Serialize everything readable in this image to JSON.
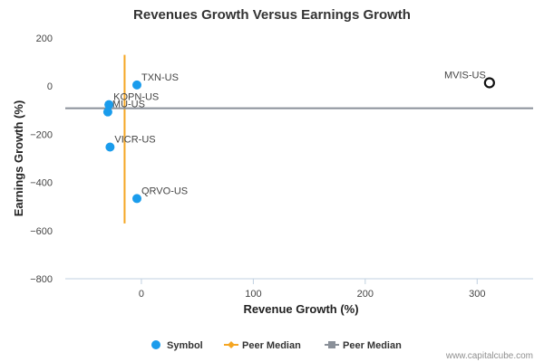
{
  "chart_data": {
    "type": "scatter",
    "title": "Revenues Growth Versus Earnings Growth",
    "xlabel": "Revenue Growth (%)",
    "ylabel": "Earnings Growth (%)",
    "xlim": [
      -68,
      350
    ],
    "ylim": [
      -800,
      200
    ],
    "x_ticks": [
      0,
      100,
      200,
      300
    ],
    "y_ticks": [
      200,
      0,
      -200,
      -400,
      -600,
      -800
    ],
    "grid": false,
    "points": [
      {
        "label": "TXN-US",
        "x": -4,
        "y": 5,
        "highlight": false
      },
      {
        "label": "KOPN-US",
        "x": -29,
        "y": -77,
        "highlight": false
      },
      {
        "label": "MU-US",
        "x": -30,
        "y": -107,
        "highlight": false
      },
      {
        "label": "VICR-US",
        "x": -28,
        "y": -253,
        "highlight": false
      },
      {
        "label": "QRVO-US",
        "x": -4,
        "y": -467,
        "highlight": false
      },
      {
        "label": "MVIS-US",
        "x": 311,
        "y": 14,
        "highlight": true
      }
    ],
    "peer_median_x": {
      "name": "Peer Median",
      "value": -15,
      "y_range": [
        130,
        -570
      ],
      "color": "#f5a623"
    },
    "peer_median_y": {
      "name": "Peer Median",
      "value": -92,
      "color": "#8a9099"
    },
    "legend": [
      {
        "name": "Symbol",
        "marker": "circle",
        "color": "#1a9cec"
      },
      {
        "name": "Peer Median",
        "marker": "diamond-line",
        "color": "#f5a623"
      },
      {
        "name": "Peer Median",
        "marker": "square-line",
        "color": "#8a9099"
      }
    ],
    "legend_position": "bottom-center"
  },
  "credit": "www.capitalcube.com",
  "colors": {
    "symbol": "#1a9cec",
    "axis": "#c0d0e0"
  }
}
